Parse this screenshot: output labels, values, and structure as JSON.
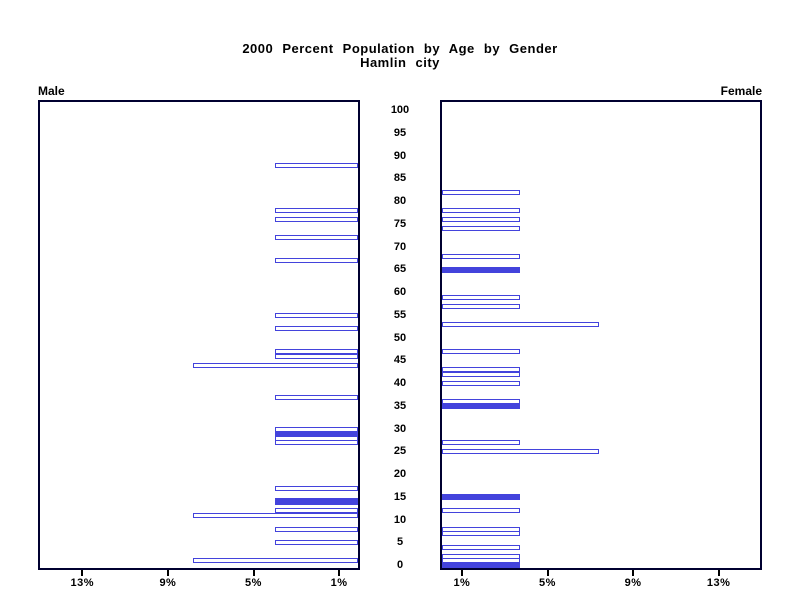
{
  "title": {
    "line1": "2000 Percent Population by Age by Gender",
    "line2": "Hamlin city"
  },
  "side_labels": {
    "male": "Male",
    "female": "Female"
  },
  "colors": {
    "bar_blue": "#4343dc",
    "panel_border": "#000030",
    "text": "#000000",
    "background": "#ffffff"
  },
  "chart_data": {
    "type": "bar",
    "variant": "population-pyramid",
    "title": "2000 Percent Population by Age by Gender",
    "subtitle": "Hamlin city",
    "age_axis": {
      "range": [
        0,
        100
      ],
      "ticks": [
        100,
        95,
        90,
        85,
        80,
        75,
        70,
        65,
        60,
        55,
        50,
        45,
        40,
        35,
        30,
        25,
        20,
        15,
        10,
        5,
        0
      ]
    },
    "pct_axis": {
      "max": 15,
      "tick_values": [
        1,
        5,
        9,
        13
      ],
      "suffix": "%",
      "male_label_order": [
        "13%",
        "9%",
        "5%",
        "1%"
      ],
      "female_label_order": [
        "1%",
        "5%",
        "9%",
        "13%"
      ]
    },
    "legend": "none",
    "grid": false,
    "series": [
      {
        "name": "Male",
        "side": "left",
        "points": [
          {
            "age": 88,
            "pct": 3.9,
            "filled": false
          },
          {
            "age": 78,
            "pct": 3.9,
            "filled": false
          },
          {
            "age": 76,
            "pct": 3.9,
            "filled": false
          },
          {
            "age": 72,
            "pct": 3.9,
            "filled": false
          },
          {
            "age": 67,
            "pct": 3.9,
            "filled": false
          },
          {
            "age": 55,
            "pct": 3.9,
            "filled": false
          },
          {
            "age": 52,
            "pct": 3.9,
            "filled": false
          },
          {
            "age": 47,
            "pct": 3.9,
            "filled": false
          },
          {
            "age": 46,
            "pct": 3.9,
            "filled": false
          },
          {
            "age": 44,
            "pct": 7.7,
            "filled": false
          },
          {
            "age": 37,
            "pct": 3.9,
            "filled": false
          },
          {
            "age": 30,
            "pct": 3.9,
            "filled": false
          },
          {
            "age": 29,
            "pct": 3.9,
            "filled": true
          },
          {
            "age": 28,
            "pct": 3.9,
            "filled": false
          },
          {
            "age": 27,
            "pct": 3.9,
            "filled": false
          },
          {
            "age": 17,
            "pct": 3.9,
            "filled": false
          },
          {
            "age": 14,
            "pct": 3.9,
            "filled": true,
            "thick": true
          },
          {
            "age": 12,
            "pct": 3.9,
            "filled": false
          },
          {
            "age": 11,
            "pct": 7.7,
            "filled": false
          },
          {
            "age": 8,
            "pct": 3.9,
            "filled": false
          },
          {
            "age": 5,
            "pct": 3.9,
            "filled": false
          },
          {
            "age": 1,
            "pct": 7.7,
            "filled": false
          }
        ]
      },
      {
        "name": "Female",
        "side": "right",
        "points": [
          {
            "age": 82,
            "pct": 3.65,
            "filled": false
          },
          {
            "age": 78,
            "pct": 3.65,
            "filled": false
          },
          {
            "age": 76,
            "pct": 3.65,
            "filled": false
          },
          {
            "age": 74,
            "pct": 3.65,
            "filled": false
          },
          {
            "age": 68,
            "pct": 3.65,
            "filled": false
          },
          {
            "age": 65,
            "pct": 3.65,
            "filled": true
          },
          {
            "age": 59,
            "pct": 3.65,
            "filled": false
          },
          {
            "age": 57,
            "pct": 3.65,
            "filled": false
          },
          {
            "age": 53,
            "pct": 7.35,
            "filled": false
          },
          {
            "age": 47,
            "pct": 3.65,
            "filled": false
          },
          {
            "age": 43,
            "pct": 3.65,
            "filled": false
          },
          {
            "age": 42,
            "pct": 3.65,
            "filled": false
          },
          {
            "age": 40,
            "pct": 3.65,
            "filled": false
          },
          {
            "age": 36,
            "pct": 3.65,
            "filled": false
          },
          {
            "age": 35,
            "pct": 3.65,
            "filled": true
          },
          {
            "age": 27,
            "pct": 3.65,
            "filled": false
          },
          {
            "age": 25,
            "pct": 7.35,
            "filled": false
          },
          {
            "age": 15,
            "pct": 3.65,
            "filled": true
          },
          {
            "age": 12,
            "pct": 3.65,
            "filled": false
          },
          {
            "age": 8,
            "pct": 3.65,
            "filled": false
          },
          {
            "age": 7,
            "pct": 3.65,
            "filled": false
          },
          {
            "age": 4,
            "pct": 3.65,
            "filled": false
          },
          {
            "age": 2,
            "pct": 3.65,
            "filled": false
          },
          {
            "age": 1,
            "pct": 3.65,
            "filled": false
          },
          {
            "age": 0,
            "pct": 3.65,
            "filled": true
          }
        ]
      }
    ]
  }
}
